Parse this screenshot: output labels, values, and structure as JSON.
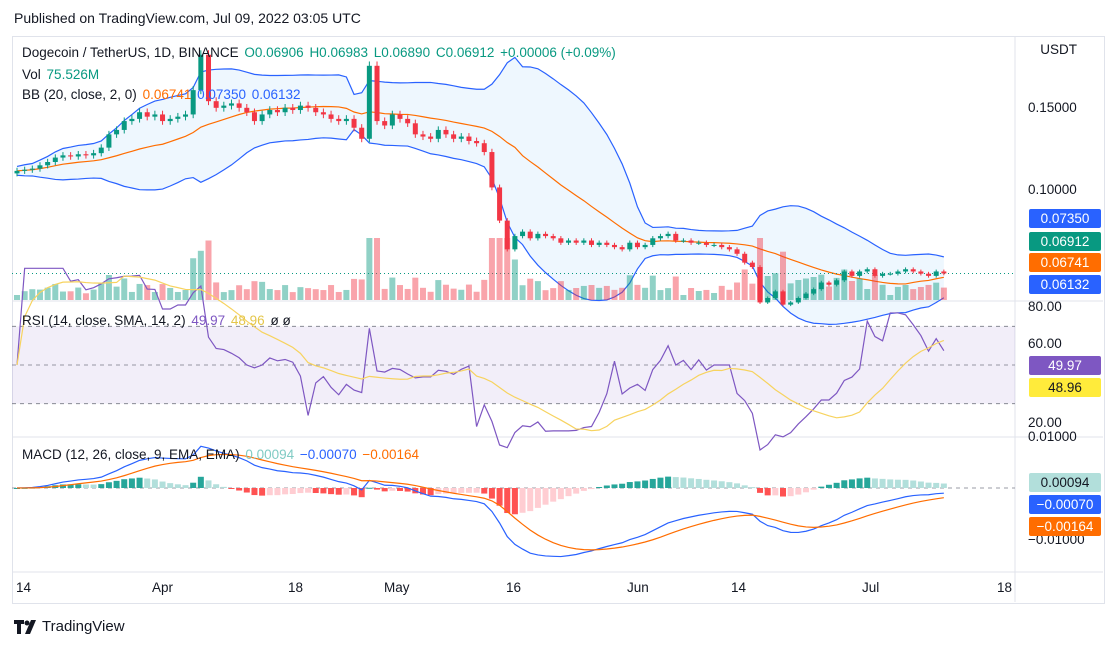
{
  "published": "Published on TradingView.com, Jul 09, 2022 03:05 UTC",
  "symbol": "Dogecoin / TetherUS, 1D, BINANCE",
  "ohlc": {
    "o": "O0.06906",
    "h": "H0.06983",
    "l": "L0.06890",
    "c": "C0.06912",
    "chg": "+0.00006 (+0.09%)"
  },
  "vol": {
    "label": "Vol",
    "value": "75.526M"
  },
  "bb": {
    "label": "BB (20, close, 2, 0)",
    "basis": "0.06741",
    "upper": "0.07350",
    "lower": "0.06132"
  },
  "rsi": {
    "label": "RSI (14, close, SMA, 14, 2)",
    "rsi": "49.97",
    "sma": "48.96",
    "extra": "ø ø"
  },
  "macd": {
    "label": "MACD (12, 26, close, 9, EMA, EMA)",
    "hist": "0.00094",
    "macd": "−0.00070",
    "signal": "−0.00164"
  },
  "currency": "USDT",
  "price_axis": [
    "0.15000",
    "0.10000"
  ],
  "price_axis_values": [
    0.15,
    0.1
  ],
  "rsi_axis": [
    "80.00",
    "60.00",
    "20.00"
  ],
  "macd_axis": [
    "0.01000",
    "−0.01000"
  ],
  "tags": {
    "upper": {
      "text": "0.07350",
      "color": "#2962ff"
    },
    "close": {
      "text": "0.06912",
      "color": "#089981"
    },
    "basis": {
      "text": "0.06741",
      "color": "#ff6d00"
    },
    "lower": {
      "text": "0.06132",
      "color": "#2962ff"
    },
    "rsi": {
      "text": "49.97",
      "color": "#7e57c2"
    },
    "rsisma": {
      "text": "48.96",
      "color": "#ffeb3b"
    },
    "hist": {
      "text": "0.00094",
      "color": "#b2dfdb"
    },
    "macd": {
      "text": "−0.00070",
      "color": "#2962ff"
    },
    "signal": {
      "text": "−0.00164",
      "color": "#ff6d00"
    }
  },
  "time_labels": [
    "14",
    "Apr",
    "18",
    "May",
    "16",
    "Jun",
    "14",
    "Jul",
    "18"
  ],
  "brand": "TradingView",
  "colors": {
    "up": "#089981",
    "down": "#f23645",
    "bb": "#2962ff",
    "basis": "#ff6d00",
    "rsi": "#7e57c2",
    "rsisma": "#f7d35f"
  },
  "chart_data": [
    {
      "type": "candlestick",
      "title": "Dogecoin / TetherUS, 1D, BINANCE",
      "x_start": "2022-03-12",
      "close": [
        0.1155,
        0.116,
        0.1165,
        0.118,
        0.1195,
        0.1215,
        0.1225,
        0.122,
        0.123,
        0.1225,
        0.1235,
        0.126,
        0.132,
        0.134,
        0.138,
        0.139,
        0.142,
        0.14,
        0.141,
        0.138,
        0.139,
        0.14,
        0.141,
        0.152,
        0.168,
        0.147,
        0.144,
        0.145,
        0.146,
        0.144,
        0.142,
        0.138,
        0.141,
        0.143,
        0.142,
        0.144,
        0.143,
        0.145,
        0.144,
        0.142,
        0.141,
        0.139,
        0.138,
        0.139,
        0.135,
        0.13,
        0.163,
        0.138,
        0.136,
        0.141,
        0.139,
        0.137,
        0.132,
        0.131,
        0.13,
        0.134,
        0.132,
        0.13,
        0.131,
        0.129,
        0.128,
        0.124,
        0.108,
        0.093,
        0.08,
        0.086,
        0.088,
        0.085,
        0.087,
        0.086,
        0.085,
        0.083,
        0.084,
        0.083,
        0.084,
        0.082,
        0.083,
        0.082,
        0.081,
        0.08,
        0.083,
        0.081,
        0.082,
        0.085,
        0.086,
        0.087,
        0.084,
        0.084,
        0.083,
        0.083,
        0.082,
        0.082,
        0.081,
        0.08,
        0.078,
        0.074,
        0.072,
        0.056,
        0.058,
        0.061,
        0.055,
        0.056,
        0.058,
        0.06,
        0.062,
        0.065,
        0.064,
        0.066,
        0.07,
        0.068,
        0.07,
        0.071,
        0.068,
        0.069,
        0.069,
        0.07,
        0.071,
        0.07,
        0.069,
        0.068,
        0.07,
        0.0691
      ],
      "bb_upper_last": 0.0735,
      "bb_basis_last": 0.06741,
      "bb_lower_last": 0.06132,
      "ylim": [
        0.058,
        0.17
      ]
    },
    {
      "type": "bar",
      "title": "Vol",
      "last": "75.526M"
    },
    {
      "type": "line",
      "title": "RSI (14, close, SMA, 14, 2)",
      "series": [
        {
          "name": "RSI",
          "last": 49.97
        },
        {
          "name": "SMA",
          "last": 48.96
        }
      ],
      "bands": [
        30,
        70
      ],
      "ylim": [
        20,
        80
      ]
    },
    {
      "type": "line",
      "title": "MACD (12, 26, close, 9, EMA, EMA)",
      "series": [
        {
          "name": "Histogram",
          "last": 0.00094
        },
        {
          "name": "MACD",
          "last": -0.0007
        },
        {
          "name": "Signal",
          "last": -0.00164
        }
      ],
      "ylim": [
        -0.01,
        0.01
      ]
    }
  ]
}
